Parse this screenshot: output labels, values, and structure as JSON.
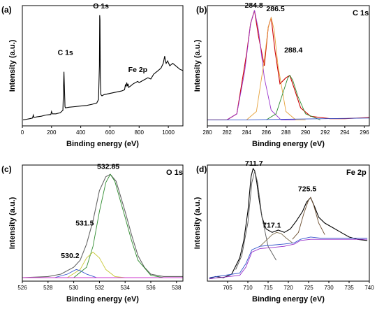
{
  "chart_data": [
    {
      "type": "line",
      "panel": "(a)",
      "tag": "",
      "xlabel": "Binding energy (eV)",
      "ylabel": "Intensity (a.u.)",
      "xlim": [
        0,
        1100
      ],
      "ylim": [
        0,
        1
      ],
      "xticks": [
        0,
        200,
        400,
        600,
        800,
        1000
      ],
      "annotations": [
        {
          "text": "C 1s",
          "x": 285,
          "y": 0.56
        },
        {
          "text": "O 1s",
          "x": 532,
          "y": 0.96
        },
        {
          "text": "Fe 2p",
          "x": 711,
          "y": 0.43
        }
      ],
      "series": [
        {
          "color": "#000000",
          "x": [
            5,
            30,
            50,
            70,
            75,
            80,
            100,
            130,
            160,
            195,
            200,
            205,
            230,
            260,
            278,
            282,
            285,
            288,
            292,
            295,
            320,
            360,
            400,
            440,
            480,
            510,
            522,
            528,
            530,
            532,
            534,
            538,
            545,
            560,
            600,
            640,
            680,
            700,
            706,
            711,
            715,
            720,
            724,
            728,
            740,
            760,
            790,
            800,
            830,
            860,
            880,
            900,
            930,
            950,
            965,
            975,
            980,
            985,
            995,
            1010,
            1030,
            1060,
            1080,
            1100
          ],
          "y": [
            0.05,
            0.055,
            0.06,
            0.065,
            0.09,
            0.07,
            0.075,
            0.08,
            0.09,
            0.095,
            0.12,
            0.1,
            0.1,
            0.11,
            0.13,
            0.32,
            0.45,
            0.33,
            0.16,
            0.15,
            0.155,
            0.16,
            0.165,
            0.17,
            0.18,
            0.19,
            0.22,
            0.5,
            0.92,
            0.88,
            0.4,
            0.26,
            0.25,
            0.26,
            0.27,
            0.28,
            0.29,
            0.3,
            0.34,
            0.33,
            0.36,
            0.33,
            0.35,
            0.32,
            0.33,
            0.35,
            0.37,
            0.36,
            0.38,
            0.4,
            0.39,
            0.43,
            0.46,
            0.48,
            0.52,
            0.58,
            0.54,
            0.52,
            0.54,
            0.5,
            0.52,
            0.49,
            0.47,
            0.46
          ]
        }
      ]
    },
    {
      "type": "line",
      "panel": "(b)",
      "tag": "C 1s",
      "xlabel": "Binding energy (eV)",
      "ylabel": "Intensity (a.u.)",
      "xlim": [
        280,
        296.5
      ],
      "ylim": [
        0,
        1
      ],
      "xticks": [
        280,
        282,
        284,
        286,
        288,
        290,
        292,
        294,
        296
      ],
      "annotations": [
        {
          "text": "284.8",
          "x": 284.8,
          "y": 0.96
        },
        {
          "text": "286.5",
          "x": 286.5,
          "y": 0.93
        },
        {
          "text": "288.4",
          "x": 288.4,
          "y": 0.58
        }
      ],
      "series": [
        {
          "color": "#cc0000",
          "x": [
            280,
            282,
            283,
            284,
            284.4,
            284.8,
            285.2,
            285.8,
            286.2,
            286.5,
            286.9,
            287.4,
            288.0,
            288.4,
            288.9,
            289.5,
            290.5,
            291.5,
            292.5,
            294,
            296.5
          ],
          "y": [
            0.05,
            0.05,
            0.1,
            0.6,
            0.85,
            0.96,
            0.75,
            0.5,
            0.82,
            0.9,
            0.62,
            0.35,
            0.4,
            0.42,
            0.3,
            0.15,
            0.08,
            0.07,
            0.06,
            0.06,
            0.07
          ]
        },
        {
          "color": "#9933cc",
          "x": [
            282,
            283,
            283.8,
            284.4,
            284.8,
            285.2,
            285.8,
            286.5,
            287.5,
            289
          ],
          "y": [
            0.05,
            0.1,
            0.45,
            0.85,
            0.96,
            0.8,
            0.4,
            0.13,
            0.05,
            0.05
          ]
        },
        {
          "color": "#e6a23c",
          "x": [
            284,
            285,
            285.8,
            286.2,
            286.5,
            286.8,
            287.2,
            288,
            289,
            290
          ],
          "y": [
            0.05,
            0.12,
            0.55,
            0.82,
            0.9,
            0.8,
            0.5,
            0.12,
            0.05,
            0.05
          ]
        },
        {
          "color": "#2e8b2e",
          "x": [
            286,
            287,
            287.8,
            288.2,
            288.4,
            288.7,
            289.2,
            290,
            291.5
          ],
          "y": [
            0.05,
            0.1,
            0.3,
            0.4,
            0.42,
            0.38,
            0.25,
            0.1,
            0.05
          ]
        },
        {
          "color": "#3355cc",
          "x": [
            280,
            284,
            288,
            292,
            296.5
          ],
          "y": [
            0.05,
            0.05,
            0.055,
            0.06,
            0.065
          ]
        }
      ]
    },
    {
      "type": "line",
      "panel": "(c)",
      "tag": "O 1s",
      "xlabel": "Binding energy (eV)",
      "ylabel": "Intensity (a.u.)",
      "xlim": [
        526,
        538.5
      ],
      "ylim": [
        0,
        1
      ],
      "xticks": [
        526,
        528,
        530,
        532,
        534,
        536,
        538
      ],
      "annotations": [
        {
          "text": "532.85",
          "x": 532.85,
          "y": 0.95
        },
        {
          "text": "531.5",
          "x": 531.5,
          "y": 0.48
        },
        {
          "text": "530.2",
          "x": 530.2,
          "y": 0.2
        }
      ],
      "series": [
        {
          "color": "#666666",
          "x": [
            526,
            528,
            529,
            530,
            530.5,
            531,
            531.5,
            532,
            532.5,
            532.85,
            533.3,
            534,
            534.5,
            535,
            535.5,
            536,
            537,
            538.5
          ],
          "y": [
            0.03,
            0.04,
            0.06,
            0.12,
            0.18,
            0.32,
            0.52,
            0.78,
            0.9,
            0.92,
            0.86,
            0.6,
            0.4,
            0.22,
            0.12,
            0.06,
            0.04,
            0.04
          ]
        },
        {
          "color": "#2e8b2e",
          "x": [
            530,
            531,
            531.5,
            532,
            532.5,
            532.85,
            533.2,
            534,
            534.5,
            535,
            536,
            537
          ],
          "y": [
            0.03,
            0.12,
            0.3,
            0.6,
            0.85,
            0.92,
            0.86,
            0.55,
            0.35,
            0.18,
            0.05,
            0.03
          ]
        },
        {
          "color": "#c9c93a",
          "x": [
            529.5,
            530.5,
            531,
            531.5,
            532,
            532.5,
            533.2,
            534
          ],
          "y": [
            0.03,
            0.1,
            0.2,
            0.25,
            0.2,
            0.1,
            0.04,
            0.03
          ]
        },
        {
          "color": "#3355cc",
          "x": [
            528.5,
            529.5,
            530,
            530.2,
            530.5,
            531,
            531.8
          ],
          "y": [
            0.03,
            0.06,
            0.09,
            0.1,
            0.09,
            0.06,
            0.03
          ]
        },
        {
          "color": "#cc33cc",
          "x": [
            526,
            538.5
          ],
          "y": [
            0.03,
            0.03
          ]
        }
      ]
    },
    {
      "type": "line",
      "panel": "(d)",
      "tag": "Fe 2p",
      "xlabel": "Binding energy (eV)",
      "ylabel": "Intensity (a.u.)",
      "xlim": [
        700,
        740
      ],
      "ylim": [
        0,
        1
      ],
      "xticks": [
        705,
        710,
        715,
        720,
        725,
        730,
        735,
        740
      ],
      "annotations": [
        {
          "text": "711.7",
          "x": 711.7,
          "y": 0.97
        },
        {
          "text": "717.1",
          "x": 717.1,
          "y": 0.46
        },
        {
          "text": "725.5",
          "x": 725.5,
          "y": 0.75
        }
      ],
      "series": [
        {
          "color": "#000000",
          "x": [
            700.5,
            702,
            704,
            706,
            708,
            709,
            710,
            710.8,
            711.3,
            711.7,
            712.2,
            712.8,
            713.5,
            714.5,
            716,
            717.5,
            719,
            720.5,
            722,
            723.5,
            724.5,
            725.5,
            726.5,
            727.5,
            729,
            731,
            733,
            735,
            737,
            739.5
          ],
          "y": [
            0.02,
            0.04,
            0.03,
            0.06,
            0.2,
            0.35,
            0.6,
            0.9,
            0.97,
            0.95,
            0.85,
            0.7,
            0.55,
            0.45,
            0.42,
            0.44,
            0.42,
            0.45,
            0.52,
            0.6,
            0.68,
            0.72,
            0.64,
            0.55,
            0.5,
            0.46,
            0.42,
            0.38,
            0.36,
            0.35
          ]
        },
        {
          "color": "#555555",
          "x": [
            707,
            708.5,
            710,
            711,
            711.7,
            712.4,
            713.5,
            715,
            717
          ],
          "y": [
            0.1,
            0.22,
            0.5,
            0.85,
            0.95,
            0.85,
            0.55,
            0.3,
            0.18
          ]
        },
        {
          "color": "#9933cc",
          "x": [
            700.5,
            708,
            709.5,
            711,
            713,
            716,
            719,
            721.5,
            723,
            725.5,
            728,
            732,
            736,
            739.5
          ],
          "y": [
            0.02,
            0.05,
            0.12,
            0.25,
            0.28,
            0.29,
            0.3,
            0.32,
            0.35,
            0.36,
            0.36,
            0.36,
            0.36,
            0.36
          ]
        },
        {
          "color": "#3355cc",
          "x": [
            700.5,
            708,
            709.5,
            711,
            713,
            716,
            719,
            721.5,
            723,
            725.5,
            728,
            732,
            736,
            739.5
          ],
          "y": [
            0.03,
            0.07,
            0.15,
            0.27,
            0.3,
            0.31,
            0.32,
            0.33,
            0.36,
            0.38,
            0.37,
            0.37,
            0.37,
            0.37
          ]
        },
        {
          "color": "#7a6a4a",
          "x": [
            713,
            714.5,
            716,
            717.1,
            718.2,
            719.5,
            721
          ],
          "y": [
            0.3,
            0.35,
            0.4,
            0.42,
            0.41,
            0.37,
            0.33
          ]
        },
        {
          "color": "#6b4c2e",
          "x": [
            721,
            722.5,
            723.8,
            725,
            725.5,
            726.2,
            727.5,
            729
          ],
          "y": [
            0.36,
            0.42,
            0.58,
            0.7,
            0.72,
            0.66,
            0.5,
            0.4
          ]
        }
      ]
    }
  ]
}
